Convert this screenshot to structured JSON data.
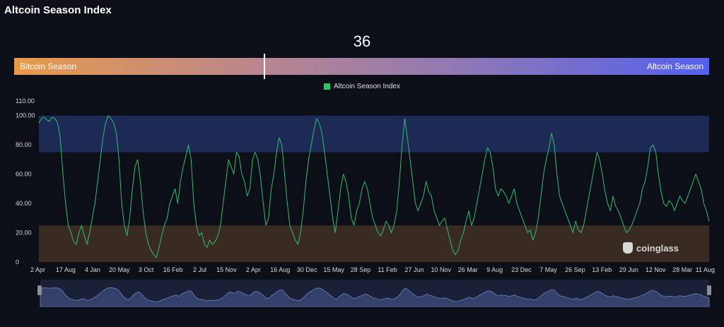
{
  "header": {
    "title": "Altcoin Season Index"
  },
  "gauge": {
    "value": "36",
    "value_fraction": 0.36,
    "left_label": "Bitcoin Season",
    "right_label": "Altcoin Season"
  },
  "brand": {
    "name": "coinglass"
  },
  "colors": {
    "line": "#2fbf6e",
    "altcoin_zone": "#1c2a55",
    "bitcoin_zone": "#3a2b22",
    "navigator": "#32406a"
  },
  "chart_data": {
    "type": "line",
    "legend": {
      "label": "Altcoin Season Index",
      "placement": "top-center"
    },
    "ylim": [
      0,
      110
    ],
    "y_ticks": [
      "0",
      "20.00",
      "40.00",
      "60.00",
      "80.00",
      "100.00",
      "110.00"
    ],
    "y_tick_values": [
      0,
      20,
      40,
      60,
      80,
      100,
      110
    ],
    "x_ticks": [
      "2 Apr",
      "17 Aug",
      "4 Jan",
      "20 May",
      "3 Oct",
      "16 Feb",
      "2 Jul",
      "15 Nov",
      "2 Apr",
      "16 Aug",
      "30 Dec",
      "15 May",
      "28 Sep",
      "11 Feb",
      "27 Jun",
      "10 Nov",
      "26 Mar",
      "9 Aug",
      "23 Dec",
      "7 May",
      "26 Sep",
      "13 Feb",
      "29 Jun",
      "12 Nov",
      "28 Mar",
      "11 Aug"
    ],
    "bands": [
      {
        "name": "Altcoin Season",
        "from": 75,
        "to": 100
      },
      {
        "name": "Bitcoin Season",
        "from": 0,
        "to": 25
      }
    ],
    "series": [
      {
        "name": "Altcoin Season Index",
        "x_start": 0,
        "x_end": 25,
        "values": [
          95,
          98,
          99,
          97,
          96,
          99,
          98,
          95,
          85,
          60,
          40,
          25,
          20,
          14,
          12,
          20,
          25,
          18,
          12,
          20,
          30,
          40,
          55,
          70,
          85,
          95,
          100,
          98,
          95,
          88,
          70,
          40,
          25,
          18,
          30,
          50,
          65,
          70,
          55,
          35,
          20,
          12,
          8,
          5,
          3,
          10,
          18,
          25,
          30,
          40,
          45,
          50,
          40,
          55,
          65,
          72,
          80,
          70,
          40,
          25,
          18,
          20,
          12,
          10,
          15,
          12,
          14,
          18,
          25,
          40,
          55,
          70,
          65,
          60,
          75,
          72,
          60,
          55,
          45,
          50,
          70,
          75,
          70,
          58,
          40,
          25,
          30,
          50,
          60,
          75,
          85,
          80,
          60,
          40,
          25,
          20,
          15,
          12,
          20,
          35,
          55,
          70,
          80,
          90,
          98,
          95,
          88,
          75,
          60,
          45,
          30,
          20,
          35,
          50,
          60,
          55,
          45,
          30,
          25,
          35,
          40,
          50,
          55,
          50,
          40,
          30,
          25,
          20,
          18,
          22,
          28,
          25,
          20,
          25,
          35,
          55,
          80,
          98,
          85,
          70,
          55,
          40,
          35,
          40,
          45,
          55,
          48,
          45,
          35,
          30,
          25,
          28,
          30,
          22,
          15,
          8,
          5,
          8,
          15,
          20,
          28,
          35,
          25,
          30,
          40,
          50,
          60,
          70,
          78,
          75,
          65,
          50,
          45,
          50,
          48,
          45,
          40,
          45,
          50,
          40,
          35,
          30,
          25,
          20,
          22,
          15,
          20,
          30,
          45,
          60,
          70,
          78,
          88,
          80,
          60,
          45,
          40,
          35,
          30,
          25,
          20,
          28,
          22,
          20,
          25,
          35,
          45,
          55,
          65,
          75,
          70,
          60,
          48,
          40,
          35,
          45,
          38,
          35,
          30,
          25,
          20,
          22,
          25,
          30,
          35,
          40,
          50,
          55,
          65,
          78,
          80,
          75,
          60,
          48,
          40,
          38,
          42,
          40,
          35,
          40,
          45,
          42,
          40,
          45,
          50,
          55,
          60,
          55,
          50,
          40,
          35,
          28
        ]
      }
    ]
  }
}
